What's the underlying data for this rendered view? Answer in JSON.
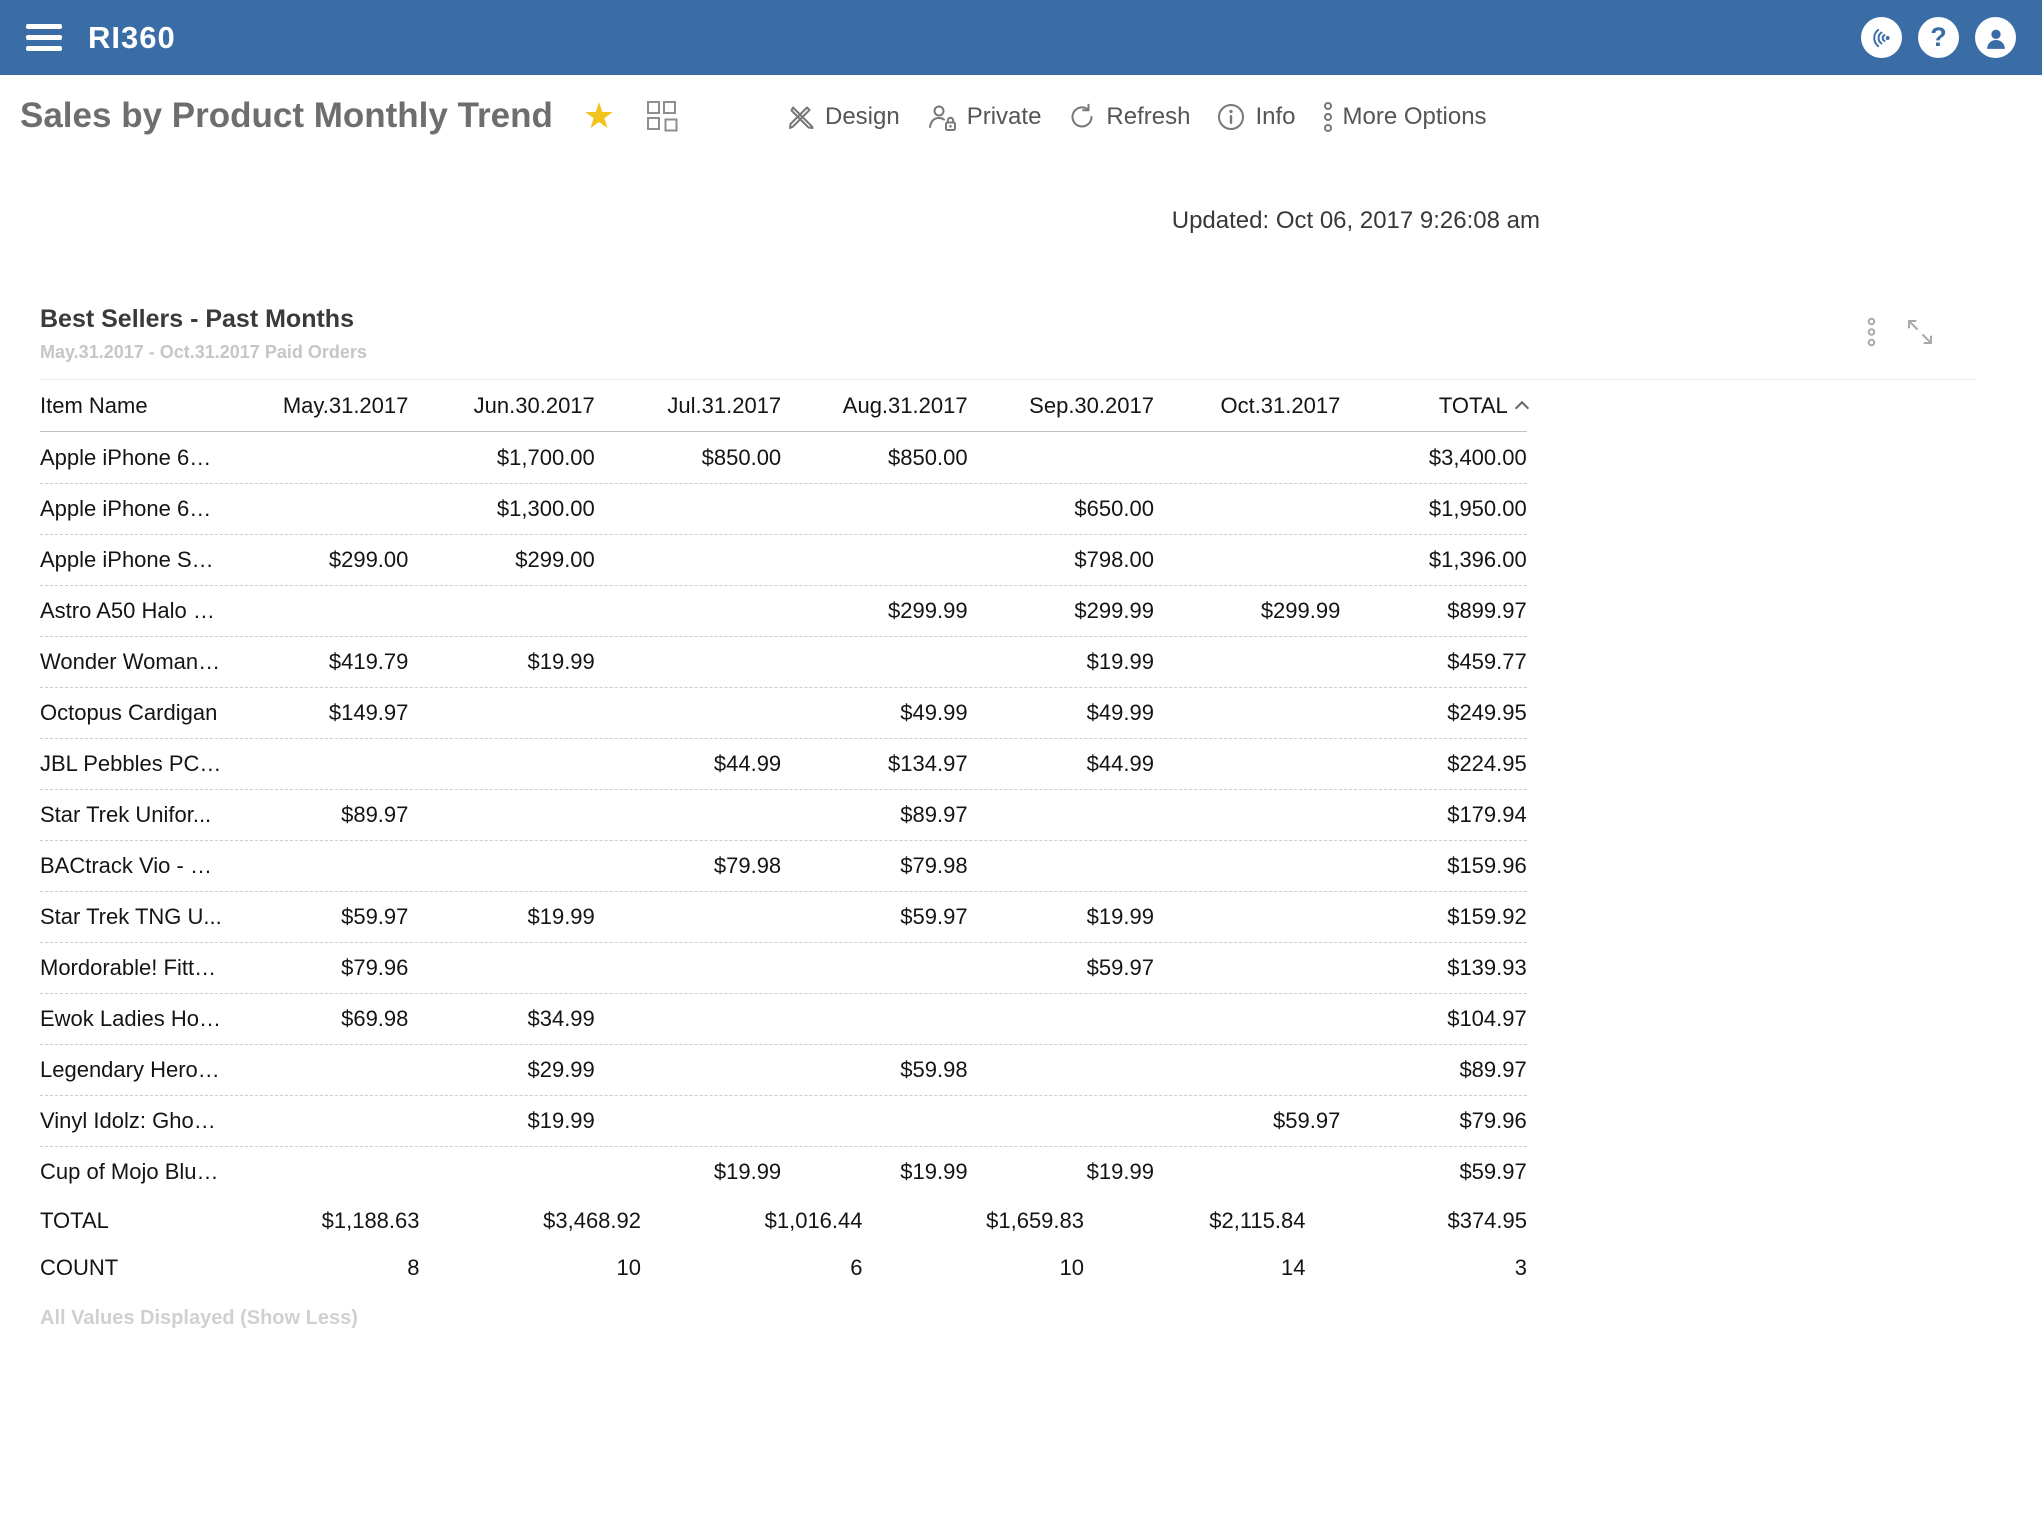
{
  "topbar": {
    "app_name": "RI360",
    "icons": [
      "menu",
      "announcements",
      "help",
      "account"
    ]
  },
  "page": {
    "title": "Sales by Product Monthly Trend",
    "favorite_icon": "star",
    "layout_icon": "grid-layout",
    "toolbar": [
      {
        "id": "design",
        "label": "Design",
        "icon": "crossed-pencils"
      },
      {
        "id": "private",
        "label": "Private",
        "icon": "person-lock"
      },
      {
        "id": "refresh",
        "label": "Refresh",
        "icon": "refresh-arrow"
      },
      {
        "id": "info",
        "label": "Info",
        "icon": "info-circle"
      },
      {
        "id": "more",
        "label": "More Options",
        "icon": "vertical-dots"
      }
    ],
    "updated": "Updated: Oct 06, 2017 9:26:08 am"
  },
  "widget": {
    "title": "Best Sellers - Past Months",
    "subtitle": "May.31.2017 - Oct.31.2017 Paid Orders",
    "icons": [
      "vertical-dots",
      "expand"
    ],
    "footnote": "All Values Displayed (Show Less)"
  },
  "table": {
    "columns": [
      "Item Name",
      "May.31.2017",
      "Jun.30.2017",
      "Jul.31.2017",
      "Aug.31.2017",
      "Sep.30.2017",
      "Oct.31.2017",
      "TOTAL"
    ],
    "sorted_column": "TOTAL",
    "sort_direction": "asc",
    "rows": [
      {
        "name": "Apple iPhone 6S ...",
        "values": [
          "",
          "$1,700.00",
          "$850.00",
          "$850.00",
          "",
          "",
          "$3,400.00"
        ]
      },
      {
        "name": "Apple iPhone 6S ...",
        "values": [
          "",
          "$1,300.00",
          "",
          "",
          "$650.00",
          "",
          "$1,950.00"
        ]
      },
      {
        "name": "Apple iPhone SE ...",
        "values": [
          "$299.00",
          "$299.00",
          "",
          "",
          "$798.00",
          "",
          "$1,396.00"
        ]
      },
      {
        "name": "Astro A50 Halo E...",
        "values": [
          "",
          "",
          "",
          "$299.99",
          "$299.99",
          "$299.99",
          "$899.97"
        ]
      },
      {
        "name": "Wonder Woman ...",
        "values": [
          "$419.79",
          "$19.99",
          "",
          "",
          "$19.99",
          "",
          "$459.77"
        ]
      },
      {
        "name": "Octopus Cardigan",
        "values": [
          "$149.97",
          "",
          "",
          "$49.99",
          "$49.99",
          "",
          "$249.95"
        ]
      },
      {
        "name": "JBL Pebbles PC S...",
        "values": [
          "",
          "",
          "$44.99",
          "$134.97",
          "$44.99",
          "",
          "$224.95"
        ]
      },
      {
        "name": "Star Trek Unifor...",
        "values": [
          "$89.97",
          "",
          "",
          "$89.97",
          "",
          "",
          "$179.94"
        ]
      },
      {
        "name": "BACtrack Vio - Bl...",
        "values": [
          "",
          "",
          "$79.98",
          "$79.98",
          "",
          "",
          "$159.96"
        ]
      },
      {
        "name": "Star Trek TNG U...",
        "values": [
          "$59.97",
          "$19.99",
          "",
          "$59.97",
          "$19.99",
          "",
          "$159.92"
        ]
      },
      {
        "name": "Mordorable! Fitte...",
        "values": [
          "$79.96",
          "",
          "",
          "",
          "$59.97",
          "",
          "$139.93"
        ]
      },
      {
        "name": "Ewok Ladies Hoo...",
        "values": [
          "$69.98",
          "$34.99",
          "",
          "",
          "",
          "",
          "$104.97"
        ]
      },
      {
        "name": "Legendary Hero ...",
        "values": [
          "",
          "$29.99",
          "",
          "$59.98",
          "",
          "",
          "$89.97"
        ]
      },
      {
        "name": "Vinyl Idolz: Ghos...",
        "values": [
          "",
          "$19.99",
          "",
          "",
          "",
          "$59.97",
          "$79.96"
        ]
      },
      {
        "name": "Cup of Mojo Blue...",
        "values": [
          "",
          "",
          "$19.99",
          "$19.99",
          "$19.99",
          "",
          "$59.97"
        ]
      }
    ],
    "total_row": {
      "label": "TOTAL",
      "values": [
        "$1,188.63",
        "$3,468.92",
        "$1,016.44",
        "$1,659.83",
        "$2,115.84",
        "$374.95"
      ]
    },
    "count_row": {
      "label": "COUNT",
      "values": [
        "8",
        "10",
        "6",
        "10",
        "14",
        "3"
      ]
    }
  },
  "colors": {
    "topbar_blue": "#3a6ca6",
    "star_gold": "#f2c31c"
  }
}
